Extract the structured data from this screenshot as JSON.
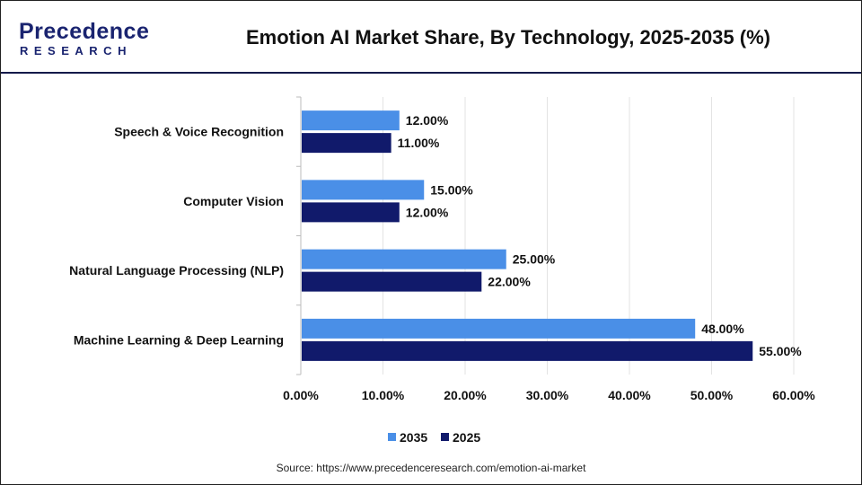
{
  "logo": {
    "line1": "Precedence",
    "line2": "RESEARCH"
  },
  "title": "Emotion AI Market Share, By Technology, 2025-2035 (%)",
  "source": "Source: https://www.precedenceresearch.com/emotion-ai-market",
  "chart_data": {
    "type": "bar",
    "orientation": "horizontal",
    "title": "Emotion AI Market Share, By Technology, 2025-2035 (%)",
    "categories": [
      "Speech & Voice Recognition",
      "Computer Vision",
      "Natural Language Processing (NLP)",
      "Machine Learning & Deep Learning"
    ],
    "series": [
      {
        "name": "2035",
        "color": "#4a8fe7",
        "values": [
          12,
          15,
          25,
          48
        ],
        "labels": [
          "12.00%",
          "15.00%",
          "25.00%",
          "48.00%"
        ]
      },
      {
        "name": "2025",
        "color": "#111a6b",
        "values": [
          11,
          12,
          22,
          55
        ],
        "labels": [
          "11.00%",
          "12.00%",
          "22.00%",
          "55.00%"
        ]
      }
    ],
    "xlim": [
      0,
      60
    ],
    "xticks": [
      "0.00%",
      "10.00%",
      "20.00%",
      "30.00%",
      "40.00%",
      "50.00%",
      "60.00%"
    ],
    "grid": true,
    "legend": "bottom"
  }
}
